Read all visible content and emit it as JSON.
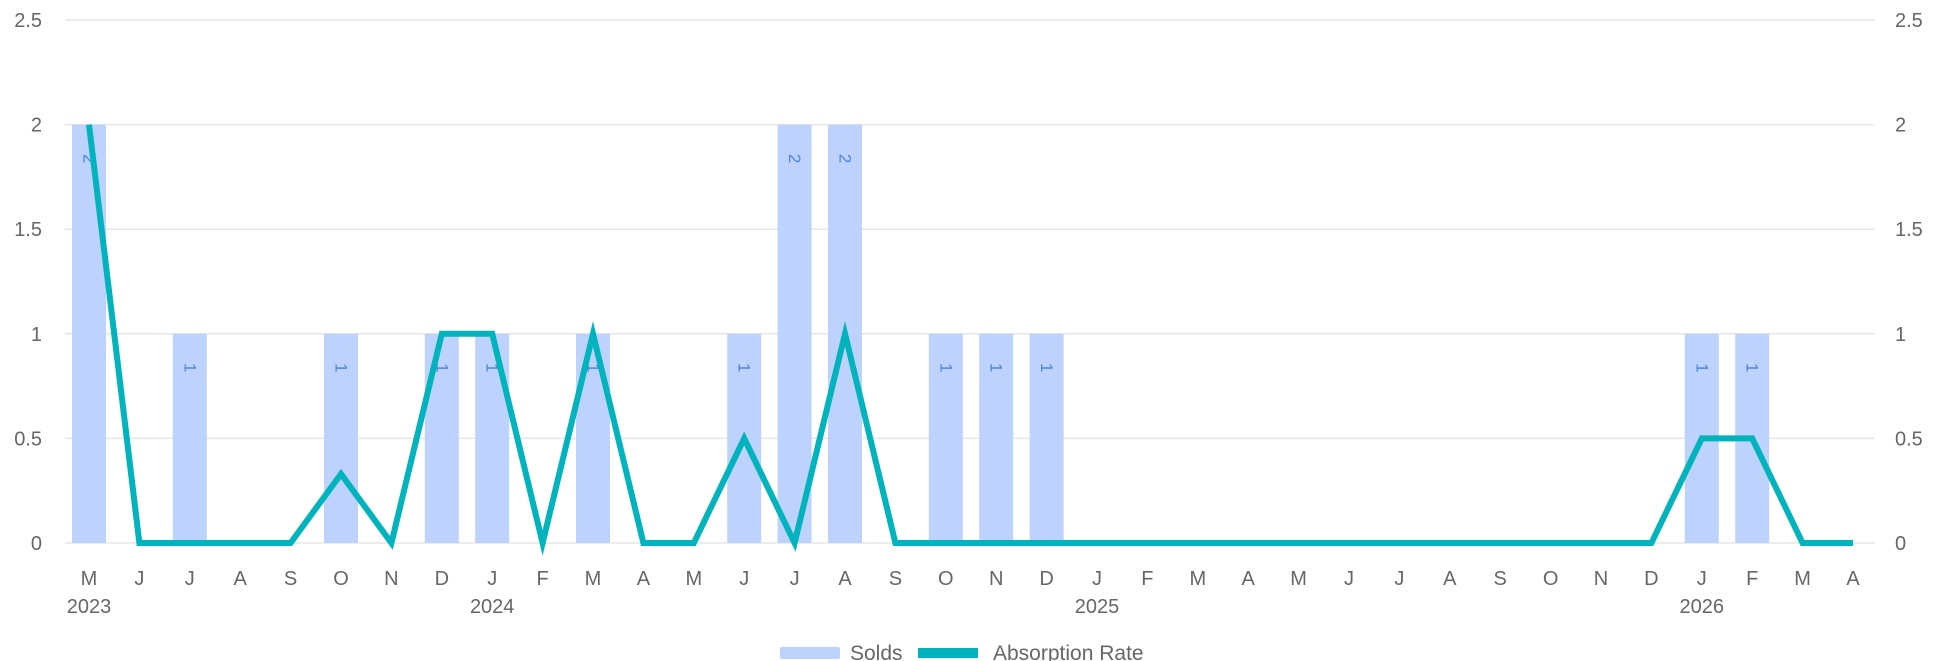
{
  "chart_data": {
    "type": "bar",
    "categories": [
      "M",
      "J",
      "J",
      "A",
      "S",
      "O",
      "N",
      "D",
      "J",
      "F",
      "M",
      "A",
      "M",
      "J",
      "J",
      "A",
      "S",
      "O",
      "N",
      "D",
      "J",
      "F",
      "M",
      "A",
      "M",
      "J",
      "J",
      "A",
      "S",
      "O",
      "N",
      "D",
      "J",
      "F",
      "M",
      "A"
    ],
    "year_labels": [
      {
        "index": 0,
        "label": "2023"
      },
      {
        "index": 8,
        "label": "2024"
      },
      {
        "index": 20,
        "label": "2025"
      },
      {
        "index": 32,
        "label": "2026"
      }
    ],
    "series": [
      {
        "name": "Solds",
        "type": "bar",
        "color": "#bdd2fd",
        "label_color": "#4a86e8",
        "values": [
          2,
          0,
          1,
          0,
          0,
          1,
          0,
          1,
          1,
          0,
          1,
          0,
          0,
          1,
          2,
          2,
          0,
          1,
          1,
          1,
          0,
          0,
          0,
          0,
          0,
          0,
          0,
          0,
          0,
          0,
          0,
          0,
          1,
          1,
          0,
          0
        ]
      },
      {
        "name": "Absorption Rate",
        "type": "line",
        "color": "#00b3bd",
        "values": [
          2,
          0,
          0,
          0,
          0,
          0.33,
          0,
          1,
          1,
          0,
          1,
          0,
          0,
          0.5,
          0,
          1,
          0,
          0,
          0,
          0,
          0,
          0,
          0,
          0,
          0,
          0,
          0,
          0,
          0,
          0,
          0,
          0,
          0.5,
          0.5,
          0,
          0
        ]
      }
    ],
    "y_ticks": [
      "0",
      "0.5",
      "1",
      "1.5",
      "2",
      "2.5"
    ],
    "ylim": [
      0,
      2.5
    ],
    "grid": true,
    "legend_position": "bottom-center"
  }
}
